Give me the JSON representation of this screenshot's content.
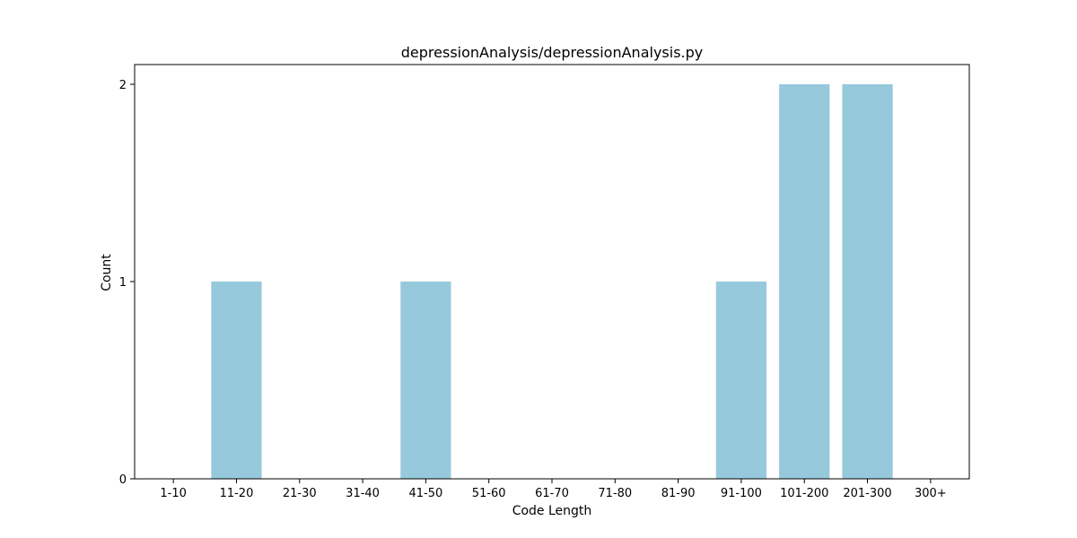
{
  "chart_data": {
    "type": "bar",
    "title": "depressionAnalysis/depressionAnalysis.py",
    "xlabel": "Code Length",
    "ylabel": "Count",
    "categories": [
      "1-10",
      "11-20",
      "21-30",
      "31-40",
      "41-50",
      "51-60",
      "61-70",
      "71-80",
      "81-90",
      "91-100",
      "101-200",
      "201-300",
      "300+"
    ],
    "values": [
      0,
      1,
      0,
      0,
      1,
      0,
      0,
      0,
      0,
      1,
      2,
      2,
      0
    ],
    "ylim": [
      0,
      2.1
    ],
    "yticks": [
      0,
      1,
      2
    ],
    "bar_color": "#96c9dc",
    "grid": false,
    "legend": null
  }
}
